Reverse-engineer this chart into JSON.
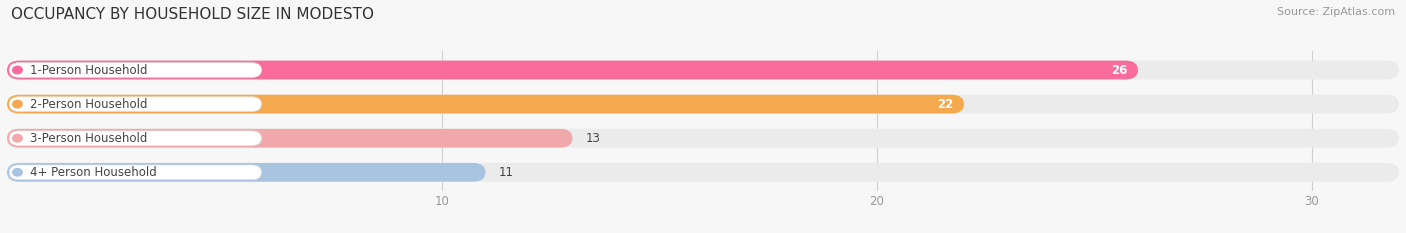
{
  "title": "OCCUPANCY BY HOUSEHOLD SIZE IN MODESTO",
  "source": "Source: ZipAtlas.com",
  "categories": [
    "1-Person Household",
    "2-Person Household",
    "3-Person Household",
    "4+ Person Household"
  ],
  "values": [
    26,
    22,
    13,
    11
  ],
  "bar_colors": [
    "#f96b9a",
    "#f5a94e",
    "#f0a8aa",
    "#a8c4e0"
  ],
  "dot_colors": [
    "#f96b9a",
    "#f5a94e",
    "#f0a8aa",
    "#a8c4e0"
  ],
  "background_color": "#f7f7f7",
  "bar_bg_color": "#ebebeb",
  "label_box_color": "#ffffff",
  "xlim_max": 32,
  "xticks": [
    10,
    20,
    30
  ],
  "title_fontsize": 11,
  "label_fontsize": 8.5,
  "value_fontsize": 8.5,
  "source_fontsize": 8,
  "grid_color": "#d0d0d0",
  "tick_color": "#999999",
  "text_color": "#444444"
}
